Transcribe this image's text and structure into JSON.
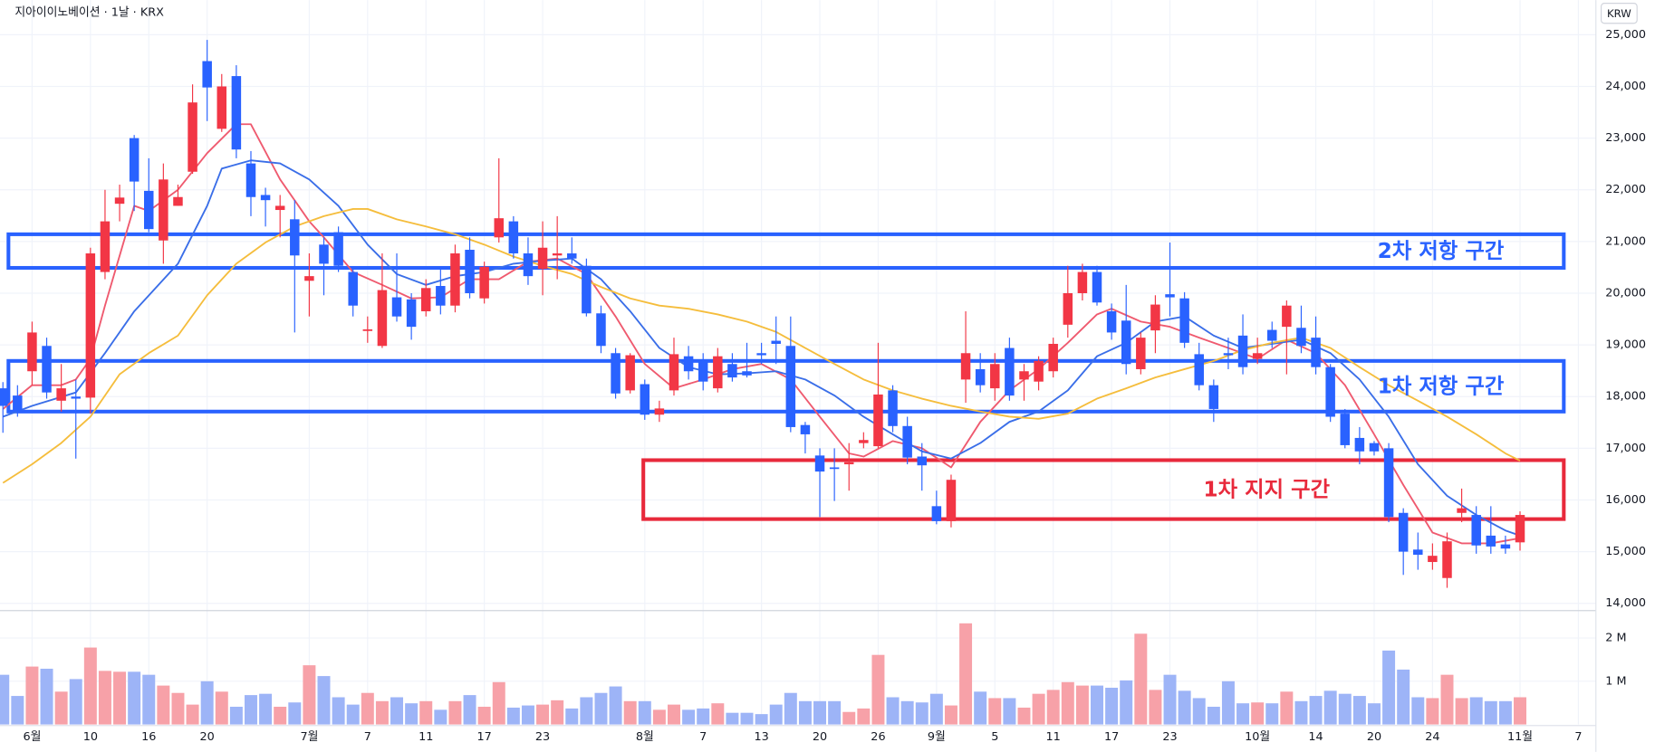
{
  "chart_data": {
    "type": "candlestick",
    "title": "지아이이노베이션 · 1날 · KRX",
    "currency": "KRW",
    "up_color": "#f23645",
    "down_color": "#2962ff",
    "volume_up_color": "#f7a1a8",
    "volume_down_color": "#9db4f7",
    "xlim": [
      -0.2,
      109.2
    ],
    "xticks": [
      {
        "value": 2,
        "label": "6월"
      },
      {
        "value": 6,
        "label": "10"
      },
      {
        "value": 10,
        "label": "16"
      },
      {
        "value": 14,
        "label": "20"
      },
      {
        "value": 21,
        "label": "7월"
      },
      {
        "value": 25,
        "label": "7"
      },
      {
        "value": 29,
        "label": "11"
      },
      {
        "value": 33,
        "label": "17"
      },
      {
        "value": 37,
        "label": "23"
      },
      {
        "value": 44,
        "label": "8월"
      },
      {
        "value": 48,
        "label": "7"
      },
      {
        "value": 52,
        "label": "13"
      },
      {
        "value": 56,
        "label": "20"
      },
      {
        "value": 60,
        "label": "26"
      },
      {
        "value": 64,
        "label": "9월"
      },
      {
        "value": 68,
        "label": "5"
      },
      {
        "value": 72,
        "label": "11"
      },
      {
        "value": 76,
        "label": "17"
      },
      {
        "value": 80,
        "label": "23"
      },
      {
        "value": 86,
        "label": "10월"
      },
      {
        "value": 90,
        "label": "14"
      },
      {
        "value": 94,
        "label": "20"
      },
      {
        "value": 98,
        "label": "24"
      },
      {
        "value": 104,
        "label": "11월"
      },
      {
        "value": 108,
        "label": "7"
      }
    ],
    "ylim": [
      13880,
      25670
    ],
    "yticks": [
      {
        "value": 14000,
        "label": "14,000"
      },
      {
        "value": 15000,
        "label": "15,000"
      },
      {
        "value": 16000,
        "label": "16,000"
      },
      {
        "value": 17000,
        "label": "17,000"
      },
      {
        "value": 18000,
        "label": "18,000"
      },
      {
        "value": 19000,
        "label": "19,000"
      },
      {
        "value": 20000,
        "label": "20,000"
      },
      {
        "value": 21000,
        "label": "21,000"
      },
      {
        "value": 22000,
        "label": "22,000"
      },
      {
        "value": 23000,
        "label": "23,000"
      },
      {
        "value": 24000,
        "label": "24,000"
      },
      {
        "value": 25000,
        "label": "25,000"
      }
    ],
    "grid": true,
    "open": [
      18160,
      18020,
      18490,
      18980,
      17920,
      18000,
      17980,
      20410,
      21730,
      23000,
      21980,
      21020,
      21690,
      22350,
      24490,
      23180,
      24200,
      22510,
      21900,
      21610,
      21430,
      20240,
      20940,
      21180,
      20410,
      19280,
      18980,
      19920,
      19880,
      19650,
      20140,
      19760,
      20840,
      19900,
      21080,
      21390,
      20770,
      20470,
      20730,
      20770,
      20530,
      19610,
      18840,
      18120,
      18240,
      17650,
      18120,
      18780,
      18670,
      18160,
      18630,
      18490,
      18840,
      19080,
      18980,
      17450,
      16860,
      16630,
      16690,
      17100,
      17040,
      18120,
      17430,
      16840,
      15880,
      15590,
      18330,
      18530,
      18160,
      18940,
      18330,
      18290,
      18490,
      19390,
      20000,
      20410,
      19650,
      19470,
      18530,
      19280,
      19980,
      19900,
      18820,
      18220,
      18840,
      19180,
      18730,
      19290,
      19350,
      19330,
      19140,
      18570,
      17670,
      17200,
      17100,
      17000,
      15750,
      15040,
      14800,
      14490,
      15750,
      15710,
      15310,
      15140,
      15180
    ],
    "high": [
      18280,
      18220,
      19450,
      19140,
      18630,
      18330,
      20880,
      22000,
      22100,
      23060,
      22610,
      22510,
      22100,
      24040,
      24900,
      24240,
      24410,
      22750,
      22040,
      21900,
      21800,
      20770,
      21080,
      21290,
      20510,
      19550,
      20770,
      20770,
      20000,
      20270,
      20470,
      20940,
      21080,
      20610,
      22610,
      21490,
      21080,
      21390,
      21490,
      21080,
      20670,
      19760,
      18940,
      18840,
      18330,
      17920,
      19140,
      18980,
      18840,
      18940,
      18840,
      19040,
      19040,
      19550,
      19550,
      17510,
      17000,
      17000,
      17100,
      17310,
      19040,
      18220,
      17610,
      17100,
      16180,
      16490,
      19650,
      18840,
      18840,
      19140,
      18630,
      18780,
      19140,
      20530,
      20570,
      20530,
      19800,
      20160,
      19240,
      19960,
      20980,
      20020,
      19040,
      18330,
      19140,
      19590,
      19140,
      19450,
      19860,
      19760,
      19550,
      18630,
      17760,
      17410,
      17140,
      17100,
      15840,
      15370,
      15160,
      15370,
      16220,
      15880,
      15880,
      15310,
      15780
    ],
    "low": [
      17300,
      17610,
      18220,
      17960,
      17710,
      16800,
      17670,
      20270,
      21390,
      21590,
      21180,
      20570,
      21690,
      22310,
      23330,
      23120,
      22610,
      21490,
      21290,
      21080,
      19240,
      19550,
      19960,
      20410,
      19550,
      19040,
      18940,
      19450,
      19100,
      19550,
      19590,
      19630,
      19900,
      19800,
      20980,
      20670,
      20160,
      19960,
      20270,
      20570,
      19550,
      18840,
      17960,
      18060,
      17550,
      17510,
      18020,
      18330,
      18120,
      18080,
      18290,
      18370,
      18630,
      18630,
      17310,
      16900,
      15670,
      15980,
      16180,
      17000,
      17000,
      17310,
      16690,
      16180,
      15530,
      15470,
      17880,
      18080,
      17920,
      17920,
      17920,
      18120,
      18370,
      19140,
      19860,
      19760,
      19100,
      18430,
      18430,
      18840,
      19550,
      18940,
      18120,
      17510,
      18530,
      18430,
      18630,
      18940,
      18430,
      18840,
      18430,
      17510,
      17000,
      16690,
      16860,
      15570,
      14550,
      14650,
      14650,
      14300,
      15570,
      14960,
      14960,
      14960,
      15020
    ],
    "close": [
      17820,
      17710,
      19240,
      18080,
      18160,
      17960,
      20770,
      21390,
      21850,
      22160,
      21240,
      22200,
      21860,
      23690,
      23980,
      24000,
      22780,
      21860,
      21800,
      21690,
      20730,
      20330,
      20570,
      20530,
      19760,
      19300,
      20060,
      19550,
      19350,
      20100,
      19760,
      20770,
      20000,
      20510,
      21450,
      20770,
      20330,
      20880,
      20770,
      20670,
      19610,
      18980,
      18060,
      18800,
      17650,
      17770,
      18820,
      18490,
      18290,
      18780,
      18370,
      18410,
      18800,
      19020,
      17410,
      17270,
      16550,
      16610,
      16730,
      17160,
      18040,
      17430,
      16820,
      16670,
      15590,
      16390,
      18840,
      18220,
      18630,
      18020,
      18490,
      18690,
      19020,
      20000,
      20410,
      19820,
      19240,
      18630,
      19140,
      19780,
      19920,
      19040,
      18220,
      17760,
      18800,
      18570,
      18840,
      19080,
      19760,
      18980,
      18570,
      17610,
      17060,
      16940,
      16940,
      15670,
      15000,
      14940,
      14920,
      15200,
      15840,
      15120,
      15100,
      15060,
      15710
    ],
    "volume": {
      "ylim": [
        0,
        2610000
      ],
      "yticks": [
        {
          "value": 1000000,
          "label": "1 M"
        },
        {
          "value": 2000000,
          "label": "2 M"
        }
      ],
      "values": [
        1150000,
        660000,
        1340000,
        1290000,
        760000,
        1050000,
        1780000,
        1240000,
        1220000,
        1220000,
        1150000,
        900000,
        730000,
        460000,
        1000000,
        760000,
        410000,
        680000,
        710000,
        410000,
        510000,
        1370000,
        1120000,
        630000,
        460000,
        730000,
        540000,
        630000,
        490000,
        540000,
        340000,
        540000,
        680000,
        410000,
        980000,
        390000,
        440000,
        460000,
        560000,
        370000,
        630000,
        730000,
        880000,
        540000,
        540000,
        340000,
        460000,
        340000,
        370000,
        490000,
        270000,
        270000,
        240000,
        460000,
        730000,
        540000,
        540000,
        540000,
        290000,
        370000,
        1610000,
        630000,
        540000,
        510000,
        710000,
        440000,
        2340000,
        760000,
        610000,
        610000,
        390000,
        710000,
        800000,
        980000,
        900000,
        900000,
        850000,
        1020000,
        2100000,
        800000,
        1150000,
        780000,
        610000,
        410000,
        1000000,
        490000,
        510000,
        490000,
        760000,
        540000,
        660000,
        780000,
        710000,
        660000,
        490000,
        1710000,
        1270000,
        630000,
        610000,
        1150000,
        610000,
        630000,
        540000,
        540000,
        630000
      ]
    },
    "series": [
      {
        "color": "#ef5a6f",
        "x": [
          0,
          2,
          4,
          5,
          6,
          7,
          9,
          10,
          12,
          14,
          16,
          17,
          19,
          21,
          22,
          24,
          26,
          28,
          30,
          32,
          34,
          36,
          38,
          40,
          42,
          44,
          46,
          48,
          50,
          52,
          54,
          56,
          58,
          59,
          61,
          63,
          65,
          67,
          69,
          71,
          73,
          75,
          76,
          78,
          80,
          82,
          84,
          86,
          88,
          90,
          92,
          94,
          96,
          98,
          100,
          102,
          104
        ],
        "values": [
          17760,
          18220,
          18220,
          18330,
          18730,
          19760,
          21690,
          21590,
          22000,
          22710,
          23270,
          23270,
          22200,
          21390,
          21080,
          20410,
          20160,
          19900,
          19920,
          20270,
          20270,
          20610,
          20670,
          20370,
          19550,
          18630,
          18160,
          18330,
          18530,
          18630,
          18330,
          17610,
          16900,
          16840,
          17140,
          17000,
          16630,
          17510,
          18120,
          18530,
          19040,
          19590,
          19700,
          19450,
          19350,
          19140,
          18940,
          18730,
          19100,
          18840,
          18220,
          17270,
          16290,
          15370,
          15160,
          15160,
          15260
        ]
      },
      {
        "color": "#3a6ee8",
        "x": [
          0,
          2,
          5,
          7,
          9,
          12,
          14,
          15,
          17,
          19,
          21,
          23,
          25,
          27,
          29,
          31,
          33,
          35,
          37,
          39,
          41,
          43,
          45,
          47,
          49,
          51,
          53,
          55,
          57,
          59,
          61,
          63,
          65,
          67,
          69,
          71,
          73,
          75,
          77,
          79,
          81,
          83,
          85,
          87,
          89,
          91,
          93,
          95,
          97,
          99,
          101,
          103,
          104
        ],
        "values": [
          17610,
          17820,
          18080,
          18840,
          19650,
          20570,
          21690,
          22410,
          22570,
          22510,
          22200,
          21690,
          20940,
          20370,
          20160,
          20330,
          20410,
          20570,
          20630,
          20670,
          20270,
          19650,
          18940,
          18570,
          18430,
          18450,
          18490,
          18330,
          18020,
          17610,
          17270,
          16940,
          16800,
          17100,
          17510,
          17710,
          18120,
          18780,
          19040,
          19450,
          19550,
          19180,
          18940,
          19020,
          19100,
          18840,
          18330,
          17610,
          16690,
          16080,
          15710,
          15410,
          15310
        ]
      },
      {
        "color": "#f5bd3c",
        "x": [
          0,
          2,
          4,
          6,
          8,
          10,
          12,
          14,
          16,
          18,
          20,
          22,
          24,
          25,
          27,
          29,
          31,
          33,
          35,
          37,
          39,
          41,
          43,
          45,
          47,
          49,
          51,
          53,
          55,
          57,
          59,
          61,
          63,
          65,
          67,
          69,
          71,
          73,
          75,
          77,
          79,
          81,
          83,
          85,
          87,
          89,
          91,
          93,
          95,
          97,
          99,
          101,
          103,
          104
        ],
        "values": [
          16330,
          16690,
          17100,
          17610,
          18430,
          18840,
          19180,
          19960,
          20570,
          20980,
          21290,
          21490,
          21630,
          21630,
          21430,
          21290,
          21140,
          20940,
          20710,
          20530,
          20370,
          20120,
          19900,
          19760,
          19700,
          19590,
          19450,
          19250,
          18940,
          18630,
          18330,
          18120,
          17960,
          17820,
          17710,
          17610,
          17570,
          17670,
          17960,
          18160,
          18370,
          18530,
          18690,
          18900,
          19040,
          19140,
          18940,
          18570,
          18220,
          17920,
          17610,
          17270,
          16900,
          16760
        ]
      }
    ],
    "zones": [
      {
        "label": "2차 저항 구간",
        "low": 20490,
        "high": 21140,
        "x_start": -0.2,
        "x_end": 107,
        "color": "#2962ff"
      },
      {
        "label": "1차 저항 구간",
        "low": 17710,
        "high": 18690,
        "x_start": -0.2,
        "x_end": 107,
        "color": "#2962ff"
      },
      {
        "label": "1차 지지 구간",
        "low": 15630,
        "high": 16770,
        "x_start": 43.9,
        "x_end": 107,
        "color": "#e8293b"
      }
    ]
  }
}
